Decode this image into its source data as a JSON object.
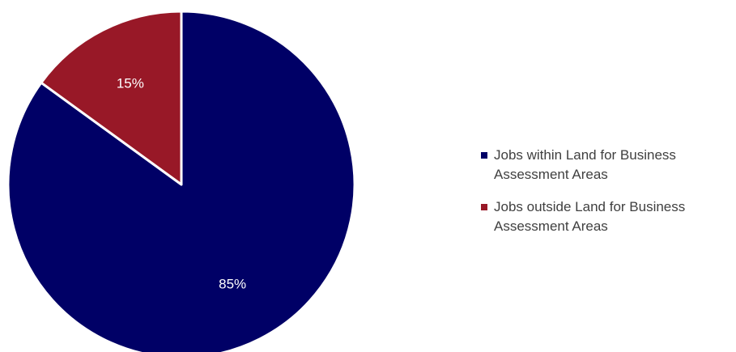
{
  "chart_data": {
    "type": "pie",
    "title": "",
    "slices": [
      {
        "label": "Jobs within Land for Business Assessment Areas",
        "value": 85,
        "display": "85%",
        "color": "#000066"
      },
      {
        "label": "Jobs outside Land for Business Assessment Areas",
        "value": 15,
        "display": "15%",
        "color": "#981827"
      }
    ],
    "legend_position": "right"
  }
}
